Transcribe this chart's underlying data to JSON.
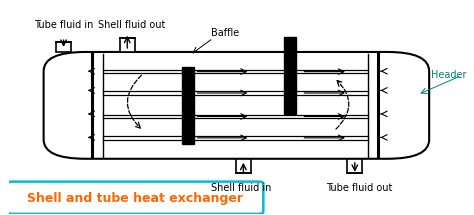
{
  "bg_color": "#ffffff",
  "shell_color": "#000000",
  "title_text": "Shell and tube heat exchanger",
  "title_color": "#ff6600",
  "title_box_color": "#00bcd4",
  "label_color": "#000000",
  "header_color": "#008080",
  "labels": {
    "tube_fluid_in": "Tube fluid in",
    "shell_fluid_out": "Shell fluid out",
    "baffle": "Baffle",
    "header": "Header",
    "shell_fluid_in": "Shell fluid in",
    "tube_fluid_out": "Tube fluid out"
  }
}
